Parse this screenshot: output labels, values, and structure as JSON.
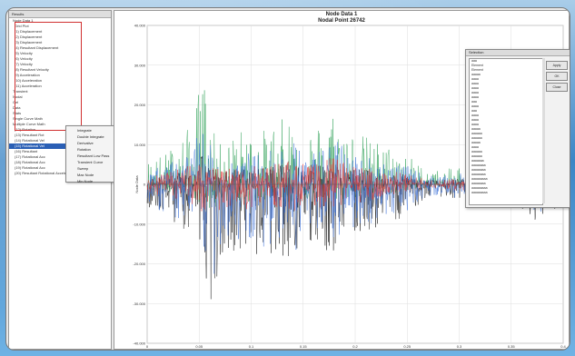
{
  "tree": {
    "title": "Results",
    "items": [
      {
        "label": "Node Data 1",
        "indent": false
      },
      {
        "label": "Grid Plot",
        "indent": true
      },
      {
        "label": "(1) Displacement",
        "indent": true
      },
      {
        "label": "(2) Displacement",
        "indent": true
      },
      {
        "label": "(3) Displacement",
        "indent": true
      },
      {
        "label": "(4) Resultant Displacement",
        "indent": true
      },
      {
        "label": "(5) Velocity",
        "indent": true
      },
      {
        "label": "(6) Velocity",
        "indent": true
      },
      {
        "label": "(7) Velocity",
        "indent": true
      },
      {
        "label": "(8) Resultant Velocity",
        "indent": true
      },
      {
        "label": "(9) Acceleration",
        "indent": true
      },
      {
        "label": "(10) Acceleration",
        "indent": true
      },
      {
        "label": "(11) Acceleration",
        "indent": true
      },
      {
        "label": "Transient",
        "indent": false
      },
      {
        "label": "Nodal",
        "indent": false
      },
      {
        "label": "Gel",
        "indent": false
      },
      {
        "label": "Data",
        "indent": false
      },
      {
        "label": "Stats",
        "indent": false
      },
      {
        "label": "Single Curve Math",
        "indent": false
      },
      {
        "label": "Multiple Curve Math",
        "indent": false
      },
      {
        "label": "(12) Rotation",
        "indent": true
      },
      {
        "label": "(13) Resultant Rot",
        "indent": true
      },
      {
        "label": "(14) Rotational Vel",
        "indent": true
      },
      {
        "label": "(15) Rotational Vel",
        "indent": true
      },
      {
        "label": "(16) Resultant",
        "indent": true
      },
      {
        "label": "(17) Rotational Acc",
        "indent": true
      },
      {
        "label": "(18) Rotational Acc",
        "indent": true
      },
      {
        "label": "(19) Rotational Acc",
        "indent": true
      },
      {
        "label": "(20) Resultant Rotational Acceleration",
        "indent": true
      }
    ],
    "selected_index": 23
  },
  "context_menu": {
    "items": [
      "Integrate",
      "Double Integrate",
      "Derivative",
      "Rotation",
      "Resultant Low Pass",
      "Transient Curve",
      "Sweep",
      "Max Node",
      "Min Node"
    ]
  },
  "plot": {
    "title_line1": "Node Data 1",
    "title_line2": "Nodal Point 26742",
    "ylabel": "Node Data"
  },
  "legend": {
    "title": "Selection",
    "items": [
      "aaa",
      "Element",
      "Element",
      "aaaaa",
      "aaaa",
      "aaaa",
      "aaaa",
      "aaaa",
      "aaaa",
      "aaa",
      "aaaa",
      "aaa",
      "aaaa",
      "aaaa",
      "aaaa",
      "aaaaa",
      "aaaaaa",
      "aaaaaa",
      "aaaaa",
      "aaaa",
      "aaaaaa",
      "aaaaaa",
      "aaaaaaa",
      "aaaaaaaa",
      "aaaaaaaa",
      "aaaaaaaa",
      "aaaaaaaaa",
      "aaaaaaaa",
      "aaaaaaaaa",
      "aaaaaaaaa"
    ],
    "buttons": [
      "Apply",
      "OK",
      "Close"
    ]
  },
  "chart_data": {
    "type": "line",
    "title": "Node Data 1",
    "subtitle": "Nodal Point 26742",
    "xlabel": "",
    "ylabel": "Node Data",
    "x_ticks": [
      "0",
      "0.05",
      "0.1",
      "0.15",
      "0.2",
      "0.25",
      "0.3",
      "0.35",
      "0.4"
    ],
    "y_ticks": [
      "40.000",
      "30.000",
      "20.000",
      "10.000",
      "0",
      "-10.000",
      "-20.000",
      "-30.000",
      "-40.000"
    ],
    "xlim": [
      0,
      0.45
    ],
    "ylim": [
      -40000,
      40000
    ],
    "grid": true,
    "series": [
      {
        "color": "#2b9e54"
      },
      {
        "color": "#111111"
      },
      {
        "color": "#3a6fd8"
      },
      {
        "color": "#e03a3a"
      }
    ],
    "envelope": {
      "x": [
        0,
        0.02,
        0.04,
        0.05,
        0.06,
        0.07,
        0.08,
        0.09,
        0.1,
        0.12,
        0.14,
        0.16,
        0.18,
        0.2,
        0.22,
        0.24,
        0.26,
        0.28,
        0.3,
        0.32,
        0.34,
        0.36,
        0.38,
        0.4,
        0.42,
        0.45
      ],
      "upper": [
        6000,
        8000,
        13000,
        16000,
        31000,
        14000,
        10000,
        12000,
        14000,
        13000,
        16000,
        18000,
        14000,
        20000,
        14000,
        12000,
        10000,
        8000,
        4000,
        3500,
        5000,
        4000,
        3000,
        3500,
        5000,
        4000
      ],
      "lower": [
        -6000,
        -9000,
        -12000,
        -15000,
        -20000,
        -30000,
        -18000,
        -16000,
        -18000,
        -19000,
        -17000,
        -20000,
        -16000,
        -18000,
        -14000,
        -12000,
        -10000,
        -8000,
        -4000,
        -3000,
        -5000,
        -4000,
        -6000,
        -5000,
        -9000,
        -5000
      ]
    }
  }
}
